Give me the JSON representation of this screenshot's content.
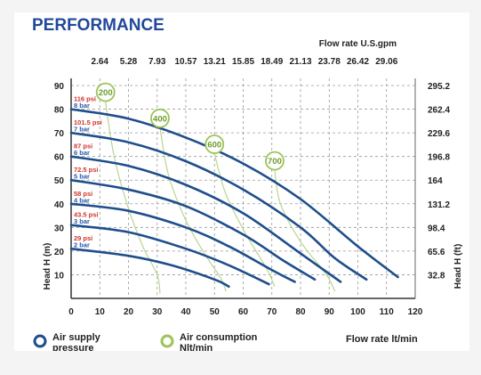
{
  "chart_data": {
    "type": "line",
    "title": "PERFORMANCE",
    "xlabel": "Flow rate  lt/min",
    "ylabel": "Head H (m)",
    "x_top_label": "Flow rate U.S.gpm",
    "y_right_label": "Head H (ft)",
    "xlim": [
      0,
      120
    ],
    "ylim": [
      0,
      90
    ],
    "x_ticks": [
      0,
      10,
      20,
      30,
      40,
      50,
      60,
      70,
      80,
      90,
      100,
      110,
      120
    ],
    "y_ticks": [
      10,
      20,
      30,
      40,
      50,
      60,
      70,
      80,
      90
    ],
    "top_ticks": [
      "2.64",
      "5.28",
      "7.93",
      "10.57",
      "13.21",
      "15.85",
      "18.49",
      "21.13",
      "23.78",
      "26.42",
      "29.06"
    ],
    "right_ticks": [
      "295.2",
      "262.4",
      "229.6",
      "196.8",
      "164",
      "131.2",
      "98.4",
      "65.6",
      "32.8"
    ],
    "grid": true,
    "colors": {
      "pressure": "#1f4e8c",
      "consumption": "#9cc456",
      "psi": "#d0352b",
      "bar": "#2a5aa8",
      "title": "#21489a"
    },
    "pressure_curves": [
      {
        "psi": "116 psi",
        "bar": "8 bar",
        "points": [
          [
            0,
            80
          ],
          [
            20,
            76
          ],
          [
            40,
            68
          ],
          [
            60,
            57
          ],
          [
            80,
            42
          ],
          [
            100,
            22
          ],
          [
            114,
            9
          ]
        ]
      },
      {
        "psi": "101.5 psi",
        "bar": "7 bar",
        "points": [
          [
            0,
            70
          ],
          [
            20,
            66
          ],
          [
            40,
            58
          ],
          [
            60,
            46
          ],
          [
            80,
            30
          ],
          [
            92,
            17
          ],
          [
            103,
            8
          ]
        ]
      },
      {
        "psi": "87 psi",
        "bar": "6 bar",
        "points": [
          [
            0,
            60
          ],
          [
            20,
            56
          ],
          [
            40,
            48
          ],
          [
            60,
            36
          ],
          [
            80,
            19
          ],
          [
            94,
            7
          ]
        ]
      },
      {
        "psi": "72.5 psi",
        "bar": "5 bar",
        "points": [
          [
            0,
            50
          ],
          [
            20,
            46
          ],
          [
            40,
            39
          ],
          [
            60,
            27
          ],
          [
            74,
            16
          ],
          [
            85,
            8
          ]
        ]
      },
      {
        "psi": "58 psi",
        "bar": "4 bar",
        "points": [
          [
            0,
            40
          ],
          [
            20,
            37
          ],
          [
            40,
            30
          ],
          [
            55,
            22
          ],
          [
            70,
            12
          ],
          [
            78,
            7
          ]
        ]
      },
      {
        "psi": "43.5 psi",
        "bar": "3 bar",
        "points": [
          [
            0,
            31
          ],
          [
            20,
            28
          ],
          [
            40,
            21
          ],
          [
            55,
            14
          ],
          [
            69,
            6
          ]
        ]
      },
      {
        "psi": "29 psi",
        "bar": "2 bar",
        "points": [
          [
            0,
            21
          ],
          [
            20,
            18
          ],
          [
            35,
            14
          ],
          [
            50,
            8
          ],
          [
            55,
            5
          ]
        ]
      }
    ],
    "consumption_curves": [
      {
        "label": "200",
        "points": [
          [
            12,
            83
          ],
          [
            15,
            60
          ],
          [
            20,
            38
          ],
          [
            25,
            22
          ],
          [
            30,
            10
          ],
          [
            31,
            2
          ]
        ]
      },
      {
        "label": "400",
        "points": [
          [
            31,
            72
          ],
          [
            34,
            52
          ],
          [
            40,
            33
          ],
          [
            47,
            18
          ],
          [
            52,
            9
          ],
          [
            54,
            3
          ]
        ]
      },
      {
        "label": "600",
        "points": [
          [
            50,
            61
          ],
          [
            54,
            44
          ],
          [
            61,
            27
          ],
          [
            68,
            13
          ],
          [
            71,
            5
          ]
        ]
      },
      {
        "label": "700",
        "points": [
          [
            71,
            54
          ],
          [
            73,
            40
          ],
          [
            80,
            24
          ],
          [
            89,
            10
          ],
          [
            92,
            3
          ]
        ]
      }
    ]
  },
  "legend": {
    "pressure_label_1": "Air supply",
    "pressure_label_2": "pressure",
    "consumption_label_1": "Air consumption",
    "consumption_label_2": "Nlt/min",
    "flow_label": "Flow rate  lt/min"
  }
}
